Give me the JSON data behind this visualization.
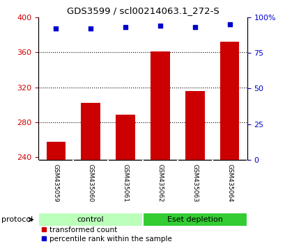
{
  "title": "GDS3599 / scl00214063.1_272-S",
  "categories": [
    "GSM435059",
    "GSM435060",
    "GSM435061",
    "GSM435062",
    "GSM435063",
    "GSM435064"
  ],
  "bar_values": [
    258,
    302,
    289,
    361,
    316,
    372
  ],
  "bar_bottom": 237,
  "percentile_values": [
    92,
    92,
    93,
    94,
    93,
    95
  ],
  "bar_color": "#cc0000",
  "dot_color": "#0000cc",
  "ylim_left": [
    237,
    400
  ],
  "ylim_right": [
    0,
    100
  ],
  "yticks_left": [
    240,
    280,
    320,
    360,
    400
  ],
  "yticks_right": [
    0,
    25,
    50,
    75,
    100
  ],
  "yticklabels_right": [
    "0",
    "25",
    "50",
    "75",
    "100%"
  ],
  "grid_lines": [
    280,
    320,
    360
  ],
  "protocol_groups": [
    {
      "label": "control",
      "indices": [
        0,
        1,
        2
      ],
      "color": "#bbffbb"
    },
    {
      "label": "Eset depletion",
      "indices": [
        3,
        4,
        5
      ],
      "color": "#33cc33"
    }
  ],
  "legend_bar_label": "transformed count",
  "legend_dot_label": "percentile rank within the sample",
  "protocol_label": "protocol",
  "bg_color": "#ffffff",
  "tick_label_bg": "#cccccc",
  "bar_width": 0.55
}
